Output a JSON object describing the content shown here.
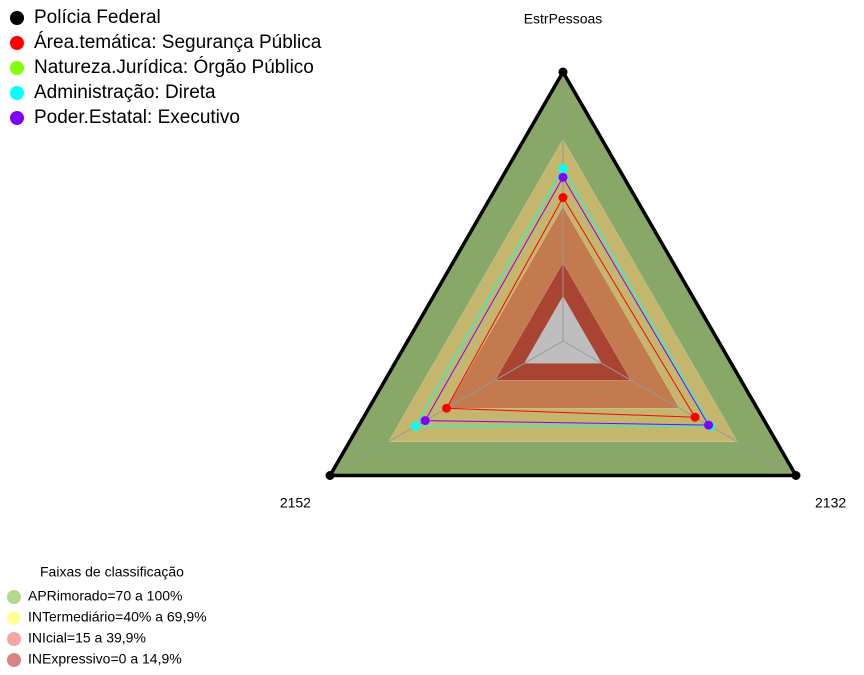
{
  "chart_data": {
    "type": "radar",
    "categories": [
      "EstrPessoas",
      "2152",
      "2132"
    ],
    "rlim": [
      -20,
      100
    ],
    "center_color": "#bebebe",
    "series": [
      {
        "name": "Polícia Federal",
        "color": "#000000",
        "values": [
          100,
          100,
          100
        ]
      },
      {
        "name": "Área.temática: Segurança Pública",
        "color": "#ff0000",
        "values": [
          44,
          40,
          48
        ]
      },
      {
        "name": "Natureza.Jurídica: Órgão Público",
        "color": "#80ff00",
        "values": [
          57,
          56,
          56
        ]
      },
      {
        "name": "Administração: Direta",
        "color": "#00ffff",
        "values": [
          57,
          56,
          56
        ]
      },
      {
        "name": "Poder.Estatal: Executivo",
        "color": "#8000ff",
        "values": [
          53,
          51,
          55
        ]
      }
    ],
    "bands_title": "Faixas de classificação",
    "bands": [
      {
        "name": "APRimorado=70 a 100%",
        "from": 70,
        "to": 100,
        "color": "#87a866",
        "legend_color": "#b2d98c"
      },
      {
        "name": "INTermediário=40% a 69,9%",
        "from": 40,
        "to": 69.9,
        "color": "#c4b66c",
        "legend_color": "#ffff99"
      },
      {
        "name": "INIcial=15 a 39,9%",
        "from": 15,
        "to": 39.9,
        "color": "#c27a4e",
        "legend_color": "#f5a3a3"
      },
      {
        "name": "INExpressivo=0 a 14,9%",
        "from": 0,
        "to": 14.9,
        "color": "#a94432",
        "legend_color": "#d98484"
      }
    ]
  }
}
